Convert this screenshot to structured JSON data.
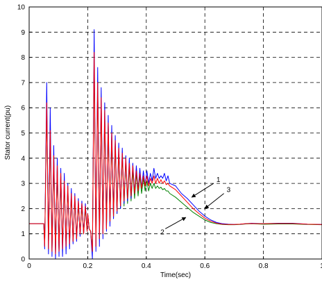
{
  "chart_data": {
    "type": "line",
    "xlabel": "Time(sec)",
    "ylabel": "Stator current(pu)",
    "xlim": [
      0,
      1
    ],
    "ylim": [
      0,
      10
    ],
    "xticks": [
      {
        "value": 0,
        "label": "0"
      },
      {
        "value": 0.2,
        "label": "0.2"
      },
      {
        "value": 0.4,
        "label": "0.4"
      },
      {
        "value": 0.6,
        "label": "0.6"
      },
      {
        "value": 0.8,
        "label": "0.8"
      },
      {
        "value": 1,
        "label": "1"
      }
    ],
    "yticks": [
      {
        "value": 0,
        "label": "0"
      },
      {
        "value": 1,
        "label": "1"
      },
      {
        "value": 2,
        "label": "2"
      },
      {
        "value": 3,
        "label": "3"
      },
      {
        "value": 4,
        "label": "4"
      },
      {
        "value": 5,
        "label": "5"
      },
      {
        "value": 6,
        "label": "6"
      },
      {
        "value": 7,
        "label": "7"
      },
      {
        "value": 8,
        "label": "8"
      },
      {
        "value": 9,
        "label": "9"
      },
      {
        "value": 10,
        "label": "10"
      }
    ],
    "grid": "dashed",
    "series": [
      {
        "color": "#0000ff",
        "label_text": "1",
        "x": [
          0,
          0.05,
          0.053,
          0.06,
          0.066,
          0.072,
          0.078,
          0.084,
          0.09,
          0.096,
          0.102,
          0.108,
          0.114,
          0.12,
          0.126,
          0.132,
          0.138,
          0.144,
          0.15,
          0.156,
          0.162,
          0.168,
          0.174,
          0.18,
          0.186,
          0.192,
          0.198,
          0.2,
          0.205,
          0.21,
          0.216,
          0.222,
          0.228,
          0.234,
          0.24,
          0.246,
          0.252,
          0.258,
          0.264,
          0.27,
          0.276,
          0.282,
          0.288,
          0.294,
          0.3,
          0.306,
          0.312,
          0.318,
          0.324,
          0.33,
          0.336,
          0.342,
          0.348,
          0.354,
          0.36,
          0.366,
          0.372,
          0.378,
          0.384,
          0.39,
          0.396,
          0.402,
          0.408,
          0.414,
          0.42,
          0.426,
          0.432,
          0.438,
          0.444,
          0.45,
          0.456,
          0.462,
          0.468,
          0.474,
          0.48,
          0.5,
          0.52,
          0.54,
          0.56,
          0.58,
          0.6,
          0.62,
          0.64,
          0.66,
          0.68,
          0.7,
          0.72,
          0.74,
          0.76,
          0.78,
          0.8,
          0.85,
          0.9,
          0.95,
          1
        ],
        "y": [
          1.4,
          1.4,
          0.4,
          7.0,
          0.2,
          6.0,
          0.1,
          4.5,
          0.0,
          4.0,
          0.1,
          3.6,
          0.1,
          3.4,
          0.2,
          3.0,
          0.4,
          2.8,
          0.6,
          2.6,
          0.7,
          2.4,
          0.9,
          2.3,
          1.0,
          2.2,
          1.1,
          1.8,
          1.2,
          1.1,
          0.0,
          9.1,
          0.3,
          7.6,
          0.5,
          6.8,
          0.8,
          6.2,
          1.1,
          5.7,
          1.3,
          5.3,
          1.6,
          4.9,
          1.8,
          4.6,
          2.0,
          4.4,
          2.2,
          4.1,
          2.3,
          4.0,
          2.4,
          3.8,
          2.6,
          3.7,
          2.7,
          3.6,
          2.8,
          3.5,
          2.9,
          3.5,
          3.0,
          3.4,
          3.1,
          3.6,
          3.2,
          3.4,
          3.2,
          3.3,
          3.2,
          3.4,
          3.1,
          3.3,
          3.0,
          2.9,
          2.6,
          2.4,
          2.15,
          1.9,
          1.7,
          1.55,
          1.45,
          1.4,
          1.38,
          1.37,
          1.38,
          1.4,
          1.42,
          1.41,
          1.4,
          1.42,
          1.42,
          1.38,
          1.37
        ]
      },
      {
        "color": "#ff0000",
        "label_text": "3",
        "x": [
          0,
          0.05,
          0.053,
          0.06,
          0.066,
          0.072,
          0.078,
          0.084,
          0.09,
          0.096,
          0.102,
          0.108,
          0.114,
          0.12,
          0.126,
          0.132,
          0.138,
          0.144,
          0.15,
          0.156,
          0.162,
          0.168,
          0.174,
          0.18,
          0.186,
          0.192,
          0.198,
          0.2,
          0.205,
          0.21,
          0.216,
          0.222,
          0.228,
          0.234,
          0.24,
          0.246,
          0.252,
          0.258,
          0.264,
          0.27,
          0.276,
          0.282,
          0.288,
          0.294,
          0.3,
          0.306,
          0.312,
          0.318,
          0.324,
          0.33,
          0.336,
          0.342,
          0.348,
          0.354,
          0.36,
          0.366,
          0.372,
          0.378,
          0.384,
          0.39,
          0.396,
          0.402,
          0.408,
          0.414,
          0.42,
          0.426,
          0.432,
          0.438,
          0.444,
          0.45,
          0.456,
          0.462,
          0.468,
          0.474,
          0.48,
          0.5,
          0.52,
          0.54,
          0.56,
          0.58,
          0.6,
          0.62,
          0.64,
          0.66,
          0.68,
          0.7,
          0.72,
          0.74,
          0.76,
          0.78,
          0.8,
          0.85,
          0.9,
          0.95,
          1
        ],
        "y": [
          1.4,
          1.4,
          0.5,
          6.2,
          0.4,
          5.1,
          0.3,
          4.1,
          0.2,
          3.7,
          0.3,
          3.4,
          0.4,
          3.1,
          0.5,
          2.9,
          0.6,
          2.6,
          0.7,
          2.5,
          0.8,
          2.3,
          1.0,
          2.2,
          1.0,
          2.1,
          1.1,
          1.8,
          1.2,
          1.1,
          0.3,
          8.2,
          0.5,
          7.0,
          0.8,
          6.4,
          1.0,
          5.9,
          1.2,
          5.4,
          1.5,
          5.0,
          1.7,
          4.7,
          1.9,
          4.4,
          2.1,
          4.2,
          2.3,
          4.0,
          2.4,
          3.8,
          2.5,
          3.7,
          2.6,
          3.5,
          2.7,
          3.4,
          2.8,
          3.3,
          2.9,
          3.3,
          2.9,
          3.2,
          3.0,
          3.3,
          3.0,
          3.2,
          3.0,
          3.15,
          3.0,
          3.1,
          2.95,
          3.0,
          2.9,
          2.75,
          2.5,
          2.25,
          2.0,
          1.8,
          1.62,
          1.5,
          1.42,
          1.38,
          1.37,
          1.37,
          1.38,
          1.4,
          1.41,
          1.4,
          1.4,
          1.41,
          1.41,
          1.38,
          1.37
        ]
      },
      {
        "color": "#008000",
        "label_text": "2",
        "x": [
          0,
          0.05,
          0.053,
          0.06,
          0.066,
          0.072,
          0.078,
          0.084,
          0.09,
          0.096,
          0.102,
          0.108,
          0.114,
          0.12,
          0.126,
          0.132,
          0.138,
          0.144,
          0.15,
          0.156,
          0.162,
          0.168,
          0.174,
          0.18,
          0.186,
          0.192,
          0.198,
          0.2,
          0.205,
          0.21,
          0.216,
          0.222,
          0.228,
          0.234,
          0.24,
          0.246,
          0.252,
          0.258,
          0.264,
          0.27,
          0.276,
          0.282,
          0.288,
          0.294,
          0.3,
          0.306,
          0.312,
          0.318,
          0.324,
          0.33,
          0.336,
          0.342,
          0.348,
          0.354,
          0.36,
          0.366,
          0.372,
          0.378,
          0.384,
          0.39,
          0.396,
          0.402,
          0.408,
          0.414,
          0.42,
          0.426,
          0.432,
          0.438,
          0.444,
          0.45,
          0.456,
          0.462,
          0.468,
          0.474,
          0.48,
          0.5,
          0.52,
          0.54,
          0.56,
          0.58,
          0.6,
          0.62,
          0.64,
          0.66,
          0.68,
          0.7,
          0.72,
          0.74,
          0.76,
          0.78,
          0.8,
          0.85,
          0.9,
          0.95,
          1
        ],
        "y": [
          1.4,
          1.4,
          0.5,
          6.1,
          0.4,
          5.0,
          0.3,
          4.0,
          0.3,
          3.6,
          0.3,
          3.3,
          0.4,
          3.0,
          0.5,
          2.8,
          0.6,
          2.5,
          0.7,
          2.4,
          0.8,
          2.2,
          1.0,
          2.1,
          1.0,
          2.0,
          1.1,
          1.8,
          1.2,
          1.1,
          0.3,
          8.1,
          0.5,
          6.9,
          0.8,
          6.3,
          1.0,
          5.8,
          1.2,
          5.3,
          1.4,
          4.9,
          1.6,
          4.6,
          1.8,
          4.3,
          2.0,
          4.1,
          2.1,
          3.9,
          2.2,
          3.7,
          2.3,
          3.5,
          2.4,
          3.4,
          2.5,
          3.3,
          2.6,
          3.2,
          2.7,
          3.1,
          2.7,
          3.0,
          2.8,
          3.0,
          2.8,
          2.9,
          2.8,
          2.85,
          2.75,
          2.8,
          2.7,
          2.7,
          2.6,
          2.45,
          2.25,
          2.05,
          1.85,
          1.7,
          1.55,
          1.45,
          1.4,
          1.37,
          1.36,
          1.36,
          1.37,
          1.39,
          1.4,
          1.39,
          1.38,
          1.39,
          1.39,
          1.37,
          1.36
        ]
      }
    ],
    "annotations": [
      {
        "text": "1",
        "x": 0.63,
        "y": 3.0,
        "target_x": 0.555,
        "target_y": 2.45
      },
      {
        "text": "3",
        "x": 0.665,
        "y": 2.6,
        "target_x": 0.6,
        "target_y": 2.0
      },
      {
        "text": "2",
        "x": 0.465,
        "y": 1.2,
        "target_x": 0.535,
        "target_y": 1.65
      }
    ]
  }
}
